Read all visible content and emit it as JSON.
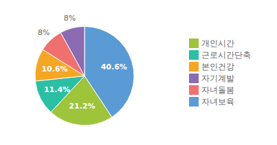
{
  "chart_data": {
    "type": "pie",
    "categories": [
      "자녀보육",
      "개인시간",
      "근로시간단축",
      "본인건강",
      "자녀돌봄",
      "자기계발"
    ],
    "values": [
      40.6,
      21.2,
      11.4,
      10.6,
      8,
      8
    ],
    "value_labels": [
      "40.6%",
      "21.2%",
      "11.4%",
      "10.6%",
      "8%",
      "8%"
    ],
    "colors": [
      "#5B9BD5",
      "#9DC43B",
      "#2BBFA4",
      "#F5A623",
      "#F07070",
      "#8B6BB1"
    ],
    "data_labels": true,
    "legend": "right"
  }
}
